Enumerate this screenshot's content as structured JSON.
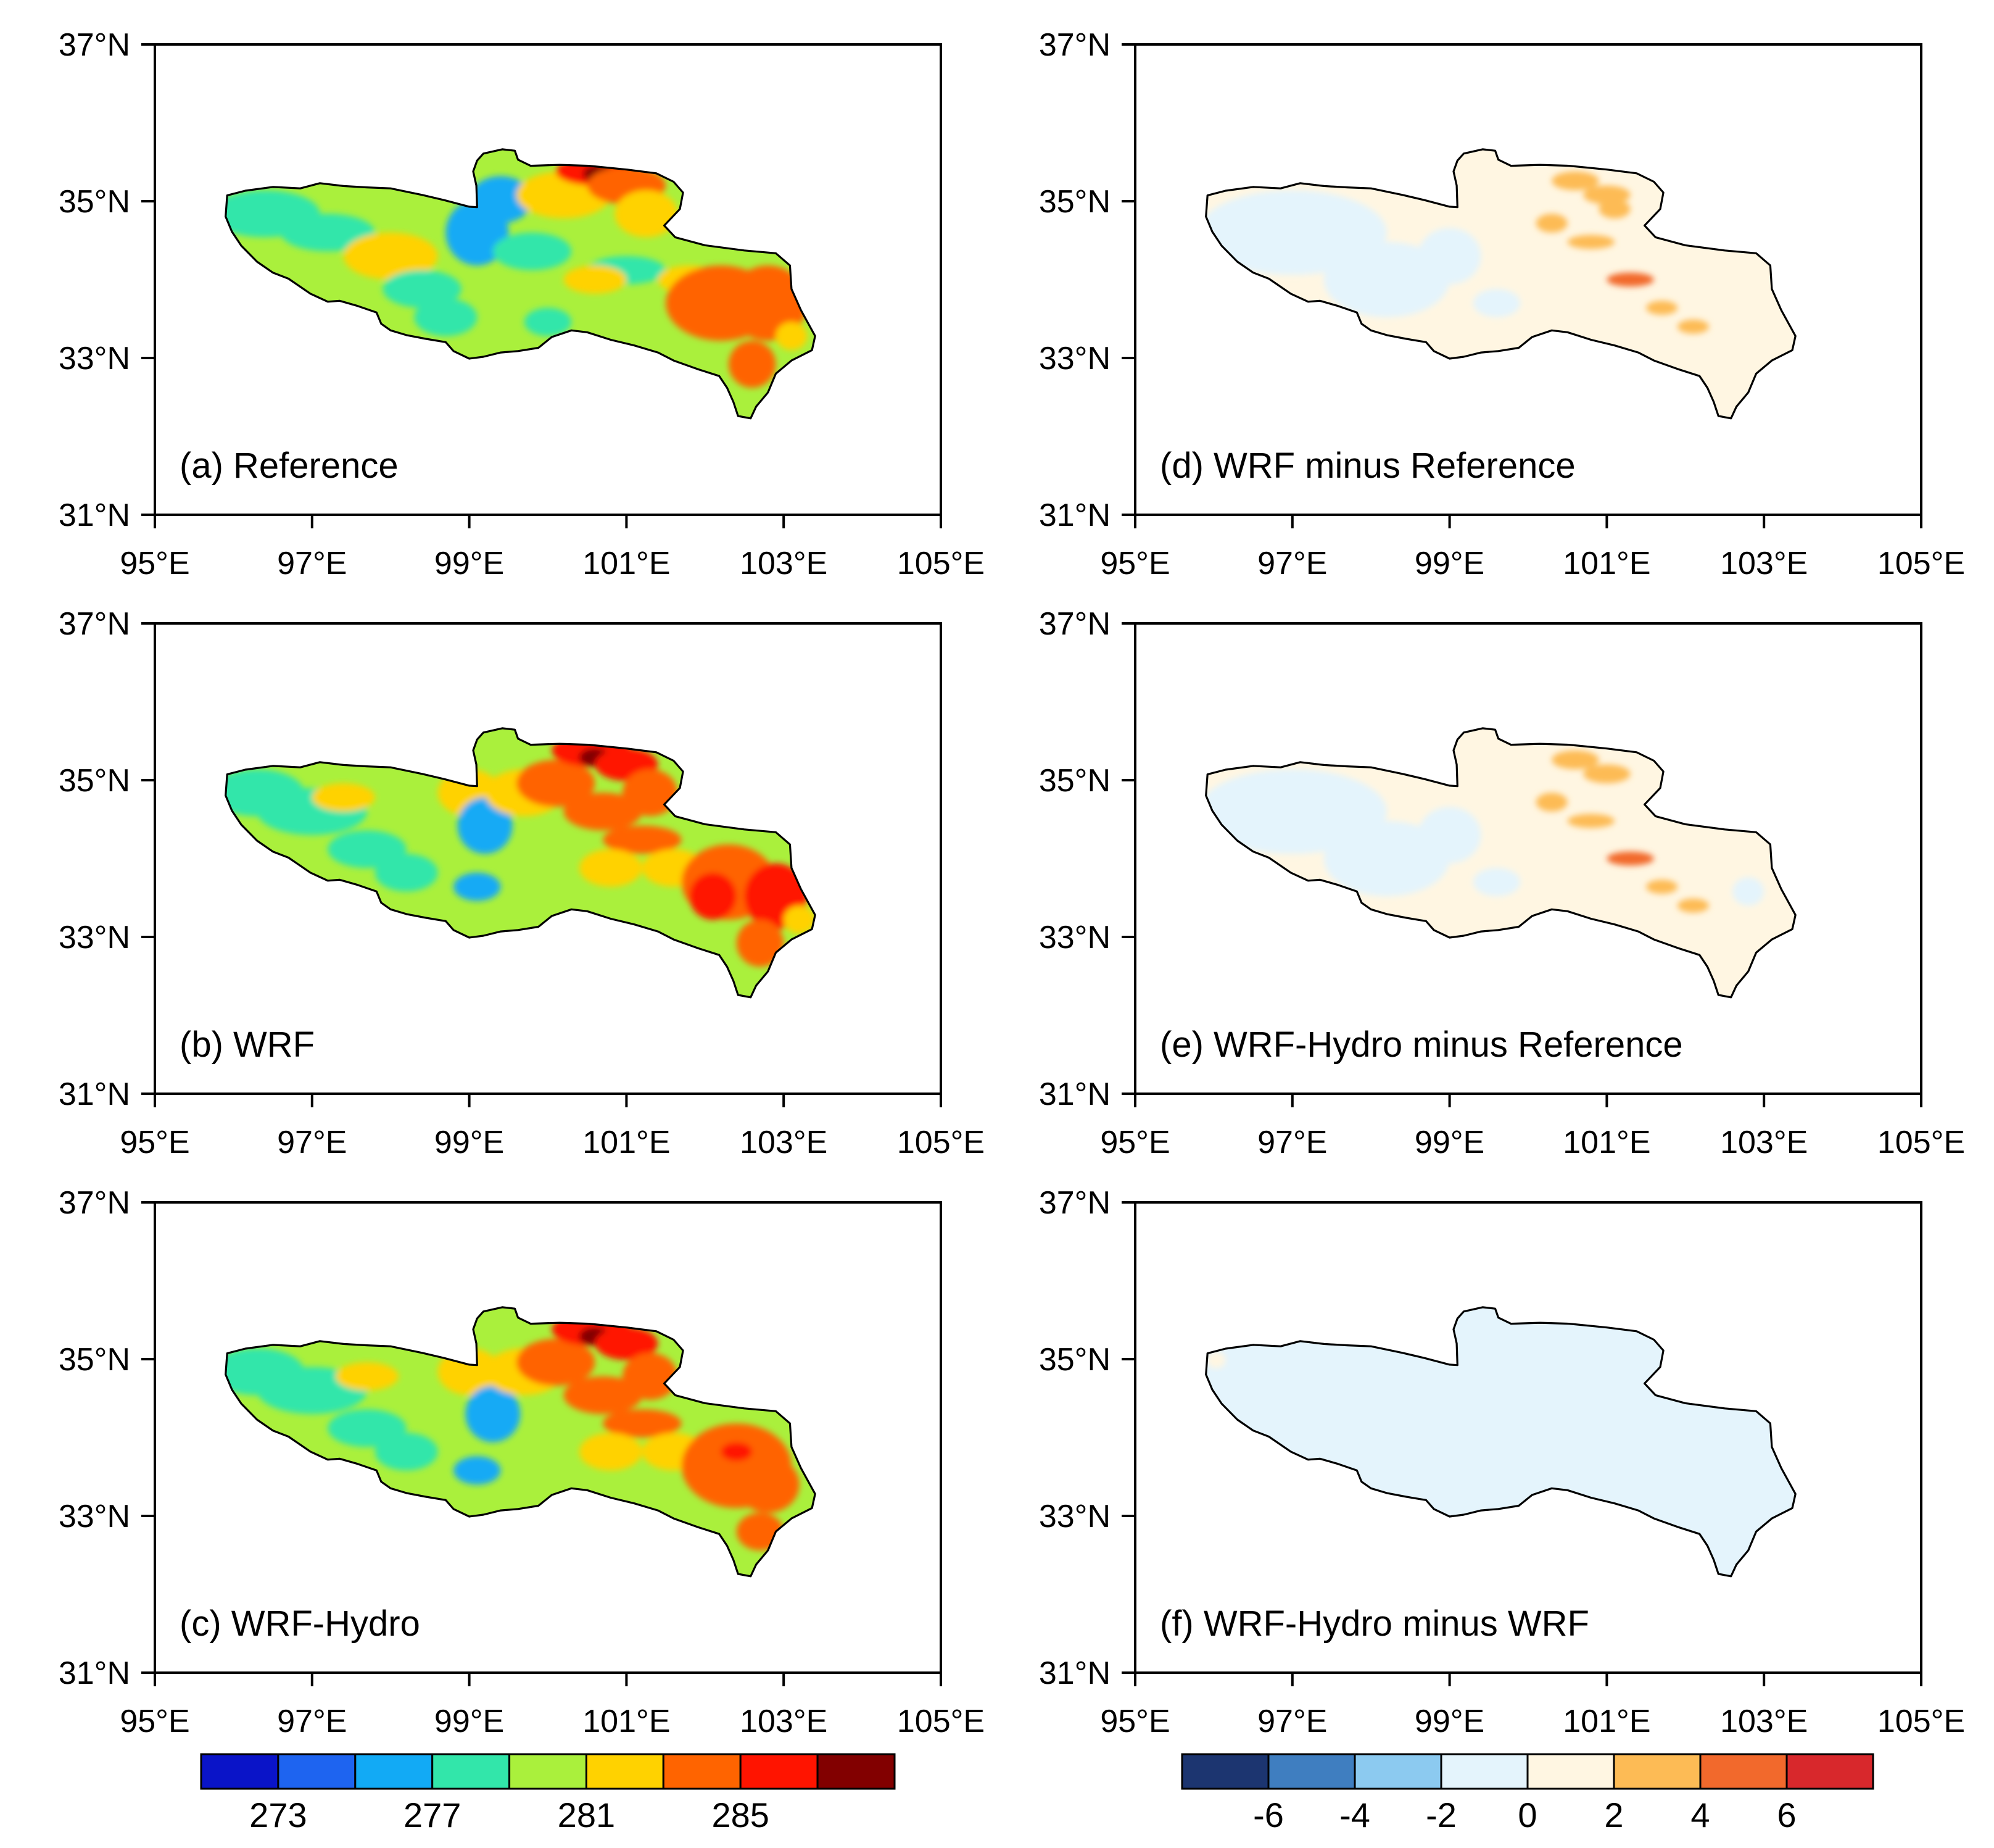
{
  "figure": {
    "panels": [
      {
        "id": "a",
        "label": "(a) Reference",
        "field": "absolute",
        "variant": "ref"
      },
      {
        "id": "b",
        "label": "(b) WRF",
        "field": "absolute",
        "variant": "wrf"
      },
      {
        "id": "c",
        "label": "(c) WRF-Hydro",
        "field": "absolute",
        "variant": "hydro"
      },
      {
        "id": "d",
        "label": "(d) WRF minus Reference",
        "field": "difference",
        "variant": "d1"
      },
      {
        "id": "e",
        "label": "(e) WRF-Hydro minus Reference",
        "field": "difference",
        "variant": "d2"
      },
      {
        "id": "f",
        "label": "(f) WRF-Hydro minus WRF",
        "field": "difference",
        "variant": "d3"
      }
    ],
    "map_extent": {
      "lon": [
        95,
        105
      ],
      "lat": [
        31,
        37
      ]
    },
    "lon_ticks": [
      "95°E",
      "97°E",
      "99°E",
      "101°E",
      "103°E",
      "105°E"
    ],
    "lat_ticks": [
      "31°N",
      "33°N",
      "35°N",
      "37°N"
    ],
    "colorbars": {
      "absolute": {
        "colors": [
          "#0a14c8",
          "#1e64f0",
          "#12aaf5",
          "#32e6aa",
          "#aaf03c",
          "#ffd200",
          "#ff6400",
          "#ff1400",
          "#820000"
        ],
        "labels": [
          "273",
          "277",
          "281",
          "285"
        ],
        "label_after_box": [
          0,
          2,
          4,
          6
        ]
      },
      "difference": {
        "colors": [
          "#1c3570",
          "#3f7ec0",
          "#8ccaf0",
          "#e4f4fc",
          "#fff6e2",
          "#fdbb55",
          "#f2692c",
          "#d8282c"
        ],
        "labels": [
          "-6",
          "-4",
          "-2",
          "0",
          "2",
          "4",
          "6"
        ],
        "label_after_box": [
          0,
          1,
          2,
          3,
          4,
          5,
          6
        ]
      }
    }
  }
}
